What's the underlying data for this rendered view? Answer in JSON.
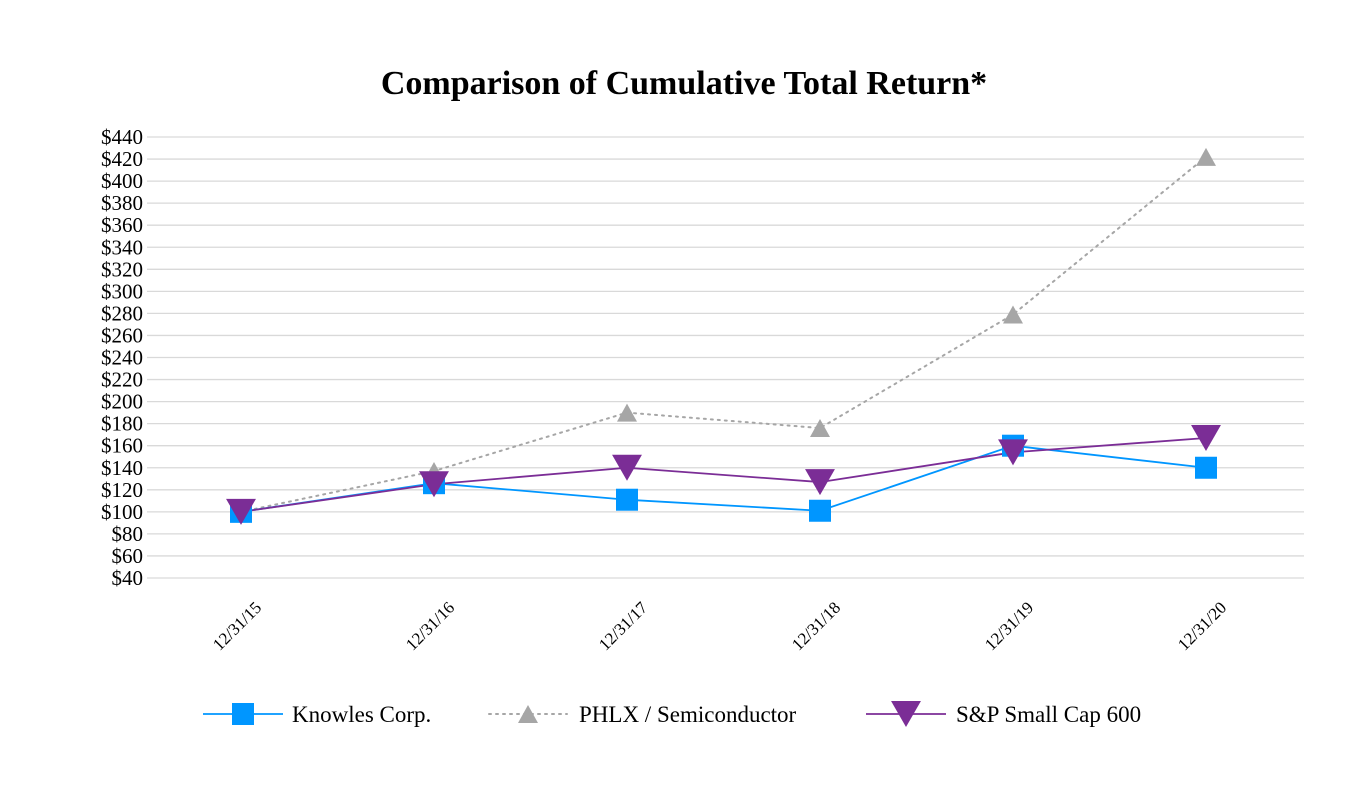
{
  "chart_data": {
    "type": "line",
    "title": "Comparison of Cumulative Total Return*",
    "xlabel": "",
    "ylabel": "",
    "categories": [
      "12/31/15",
      "12/31/16",
      "12/31/17",
      "12/31/18",
      "12/31/19",
      "12/31/20"
    ],
    "ylim": [
      40,
      440
    ],
    "ytick_step": 20,
    "ytick_labels": [
      "$40",
      "$60",
      "$80",
      "$100",
      "$120",
      "$140",
      "$160",
      "$180",
      "$200",
      "$220",
      "$240",
      "$260",
      "$280",
      "$300",
      "$320",
      "$340",
      "$360",
      "$380",
      "$400",
      "$420",
      "$440"
    ],
    "grid": true,
    "legend_position": "bottom",
    "series": [
      {
        "name": "Knowles Corp.",
        "values": [
          100,
          126,
          111,
          101,
          160,
          140
        ],
        "color": "#0096FF",
        "line_style": "solid",
        "marker": "square"
      },
      {
        "name": "PHLX / Semiconductor",
        "values": [
          100,
          137,
          190,
          176,
          279,
          422
        ],
        "color": "#A6A6A6",
        "line_style": "dotted",
        "marker": "triangle-up"
      },
      {
        "name": "S&P Small Cap 600",
        "values": [
          100,
          125,
          140,
          127,
          154,
          167
        ],
        "color": "#7B2D96",
        "line_style": "solid",
        "marker": "triangle-down"
      }
    ]
  }
}
